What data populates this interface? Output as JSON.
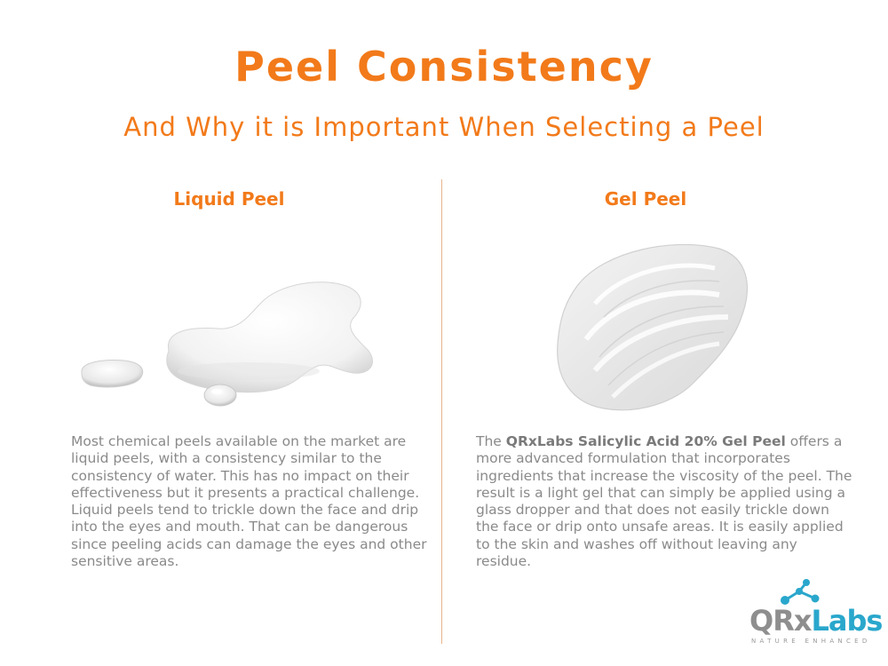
{
  "colors": {
    "accent": "#f27a1a",
    "body_text": "#8a8a8a",
    "logo_blue": "#2aa7cc",
    "logo_gray": "#8e8e8e"
  },
  "header": {
    "title": "Peel Consistency",
    "subtitle": "And Why it is Important When Selecting a Peel"
  },
  "left": {
    "heading": "Liquid Peel",
    "image": "liquid-puddle-image",
    "text": "Most chemical peels available on the market are liquid peels, with a consistency similar to the consistency of water. This has no impact on their effectiveness but it presents a practical challenge. Liquid peels tend to trickle down the face and drip into the eyes and mouth. That can be dangerous since peeling acids can damage the eyes and other sensitive areas."
  },
  "right": {
    "heading": "Gel Peel",
    "image": "gel-swatch-image",
    "text_intro": "The ",
    "text_bold": "QRxLabs Salicylic Acid 20% Gel Peel",
    "text_rest": " offers a more advanced formulation that incorporates ingredients that increase the viscosity of the peel. The result is a light gel that can simply be applied using a glass dropper and that does not easily trickle down the face or drip onto unsafe areas. It is easily applied to the skin and washes off without leaving any residue."
  },
  "logo": {
    "brand_qrx": "QRx",
    "brand_labs": "Labs",
    "tagline": "NATURE ENHANCED",
    "icon": "molecule-icon"
  }
}
